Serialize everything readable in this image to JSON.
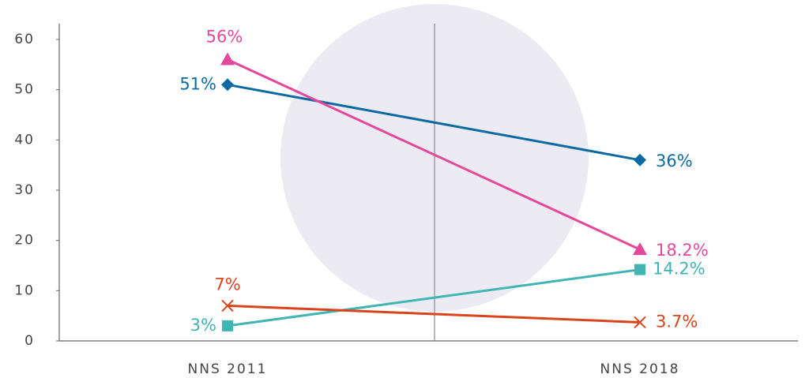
{
  "chart_data": {
    "type": "line",
    "categories": [
      "NNS 2011",
      "NNS 2018"
    ],
    "series": [
      {
        "color": "#0b6aa2",
        "marker": "diamond",
        "values": [
          51,
          36
        ],
        "value_labels": [
          "51%",
          "36%"
        ]
      },
      {
        "color": "#e5489a",
        "marker": "triangle",
        "values": [
          56,
          18.2
        ],
        "value_labels": [
          "56%",
          "18.2%"
        ]
      },
      {
        "color": "#3fb5b4",
        "marker": "square",
        "values": [
          3,
          14.2
        ],
        "value_labels": [
          "3%",
          "14.2%"
        ]
      },
      {
        "color": "#d9441c",
        "marker": "x",
        "values": [
          7,
          3.7
        ],
        "value_labels": [
          "7%",
          "3.7%"
        ]
      }
    ],
    "ylim": [
      0,
      60
    ],
    "yticks": [
      0,
      10,
      20,
      30,
      40,
      50,
      60
    ]
  }
}
